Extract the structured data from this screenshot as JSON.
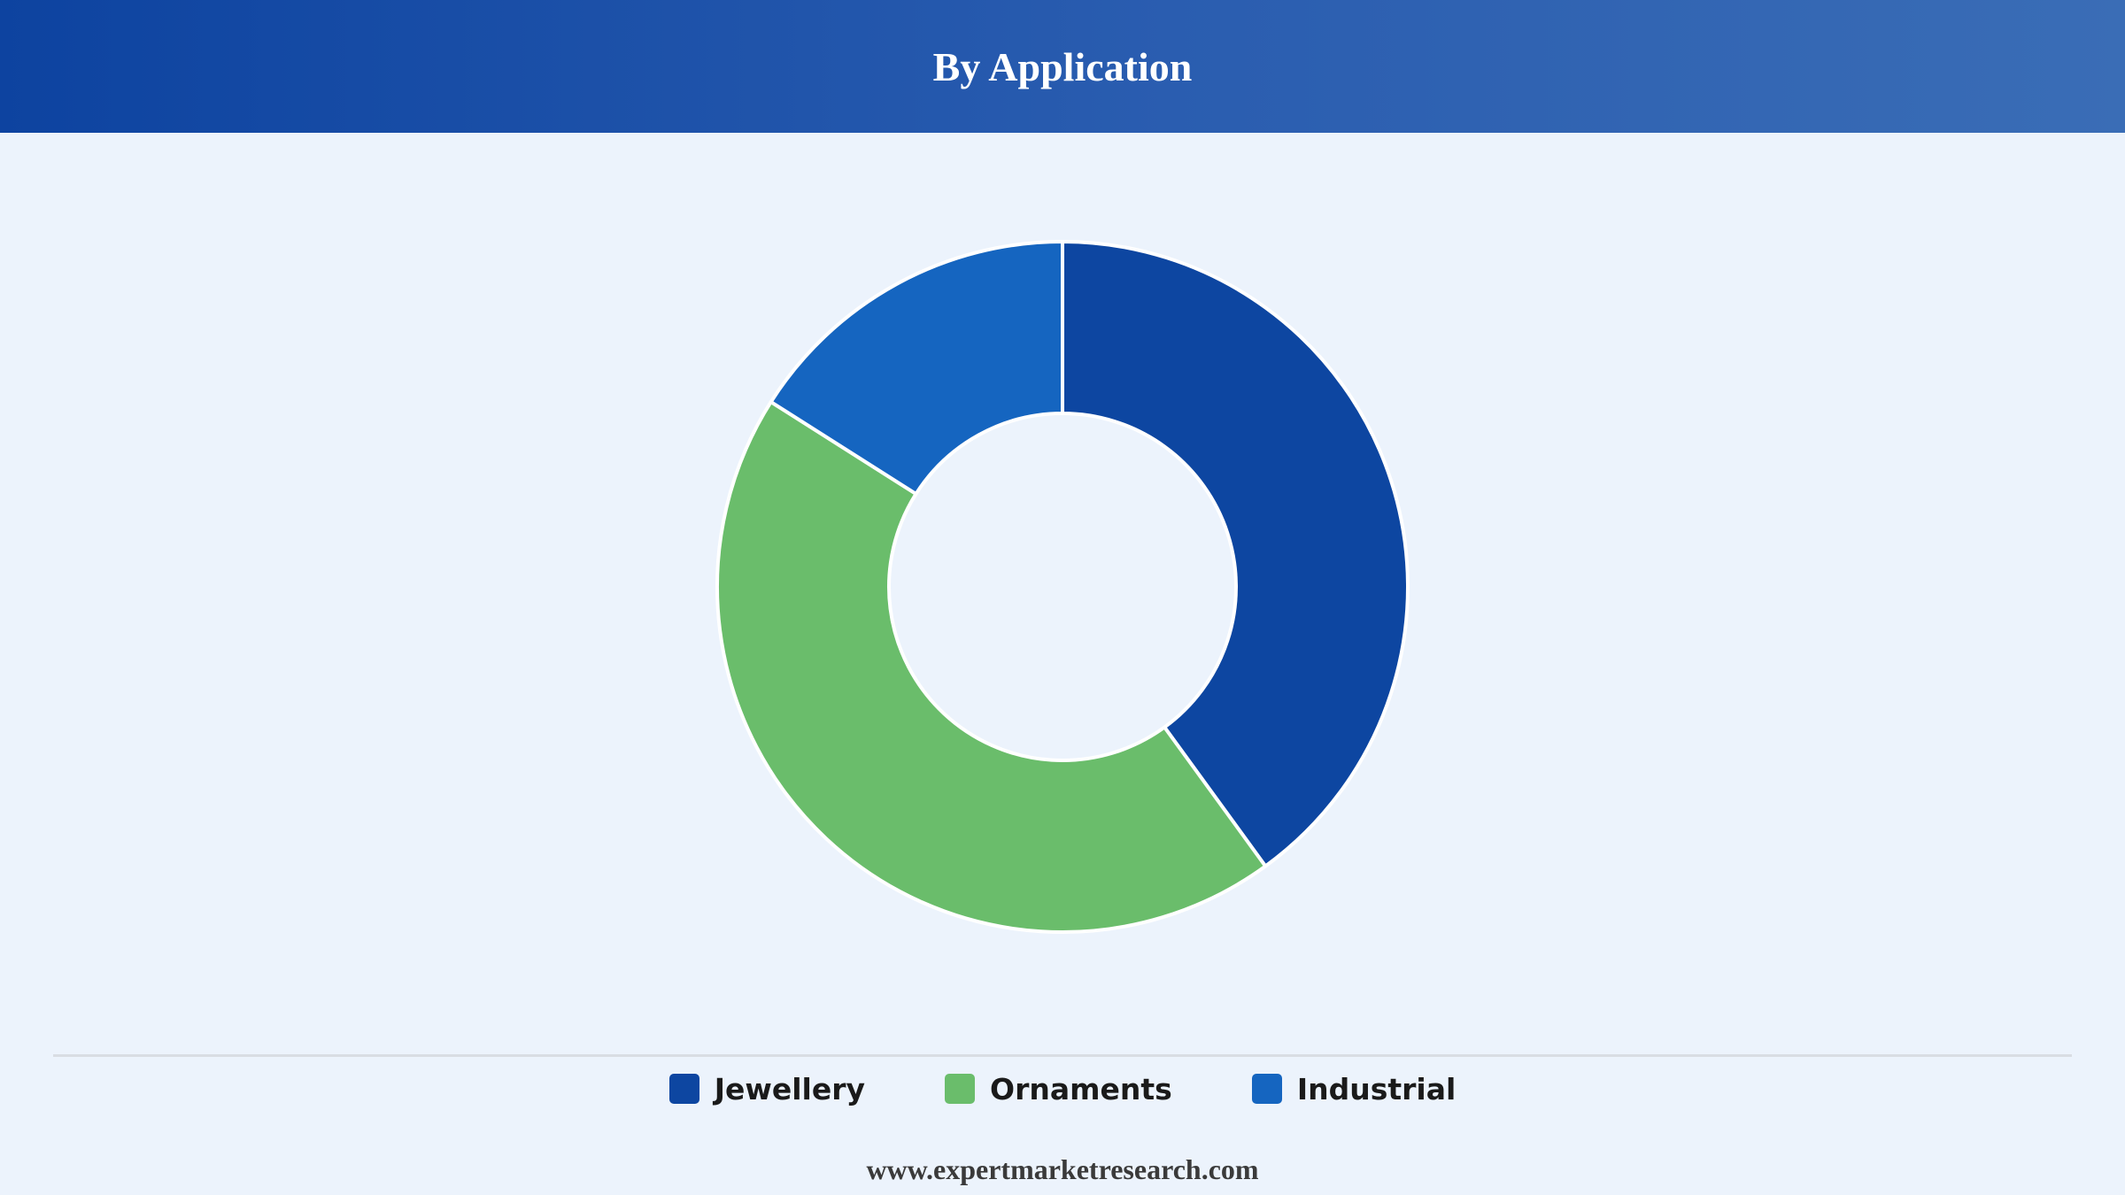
{
  "header": {
    "title": "By Application"
  },
  "chart_data": {
    "type": "pie",
    "donut": true,
    "title": "By Application",
    "categories": [
      "Jewellery",
      "Ornaments",
      "Industrial"
    ],
    "values": [
      40,
      44,
      16
    ],
    "colors": [
      "#0d46a1",
      "#6abd6b",
      "#1565c0"
    ],
    "legend_position": "bottom"
  },
  "legend": {
    "items": [
      {
        "label": "Jewellery",
        "color": "#0d46a1"
      },
      {
        "label": "Ornaments",
        "color": "#6abd6b"
      },
      {
        "label": "Industrial",
        "color": "#1565c0"
      }
    ]
  },
  "footer": {
    "text": "www.expertmarketresearch.com"
  }
}
